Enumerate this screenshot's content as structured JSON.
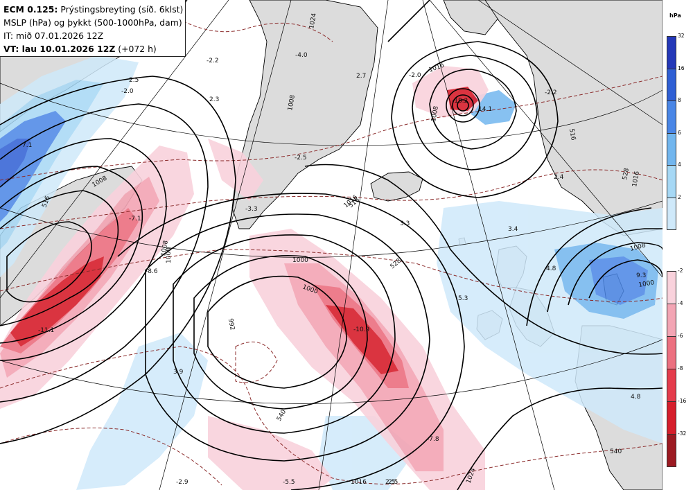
{
  "header": {
    "model": "ECM 0.125:",
    "product": "Prýstingsbreyting (síð. 6klst)",
    "line2": "MSLP (hPa) og þykkt (500-1000hPa, dam)",
    "line3": "IT: mið 07.01.2026 12Z",
    "line4_bold": "VT: lau 10.01.2026 12Z",
    "line4_rest": "(+072 h)"
  },
  "legend": {
    "unit": "hPa",
    "rise_colors": [
      "#cfe9fa",
      "#a6d8f5",
      "#72b6ee",
      "#4a86e6",
      "#2f5fd4",
      "#2438b8"
    ],
    "rise_ticks": [
      "32",
      "16",
      "8",
      "6",
      "4",
      "2"
    ],
    "fall_colors": [
      "#f9d2dc",
      "#f3a5b4",
      "#ec7080",
      "#e43c4c",
      "#d61f2c",
      "#9c1a22"
    ],
    "fall_ticks": [
      "-2",
      "-4",
      "-6",
      "-8",
      "-16",
      "-32"
    ]
  },
  "colors": {
    "land": "#dcdcdc",
    "sea": "#ffffff",
    "coast": "#000000",
    "isobar": "#000000",
    "thickness": "#8b2b2b",
    "graticule": "#000000"
  },
  "isobar_labels": [
    "1016",
    "1008",
    "1008",
    "1000",
    "992",
    "1008",
    "1000",
    "1016",
    "1024",
    "1024",
    "1016",
    "1008",
    "1016",
    "1008",
    "1000",
    "1008"
  ],
  "thickness_labels": [
    "516",
    "540",
    "528",
    "516",
    "540",
    "516",
    "528"
  ],
  "change_values": [
    "-2.2",
    "2.3",
    "-4.0",
    "2.7",
    "-2.0",
    "-2.5",
    "-2.0",
    "7.1",
    "2.5",
    "-7.1",
    "-8.6",
    "-11.1",
    "3.9",
    "-2.9",
    "-5.5",
    "2.5",
    "-10.9",
    "-7.8",
    "3.3",
    "-3.3",
    "5.3",
    "3.4",
    "4.8",
    "9.3",
    "4.8",
    "2.4",
    "-2.2",
    "14.1",
    "-18.2",
    "2.5"
  ]
}
